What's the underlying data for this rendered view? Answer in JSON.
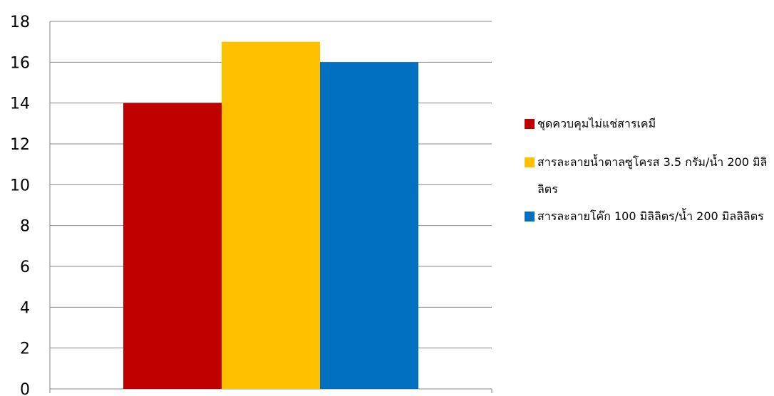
{
  "chart_data": {
    "type": "bar",
    "categories": [
      ""
    ],
    "series": [
      {
        "name": "ชุดควบคุมไม่แช่สารเคมี",
        "values": [
          14
        ],
        "color": "#C00000"
      },
      {
        "name": "สารละลายน้ำตาลซูโครส 3.5 กรัม/น้ำ 200 มิลิลิตร",
        "values": [
          17
        ],
        "color": "#FFC000"
      },
      {
        "name": "สารละลายโค๊ก 100 มิลิลิตร/น้ำ 200 มิลลิลิตร",
        "values": [
          16
        ],
        "color": "#0070C0"
      }
    ],
    "ylim": [
      0,
      18
    ],
    "yticks": [
      "0",
      "2",
      "4",
      "6",
      "8",
      "10",
      "12",
      "14",
      "16",
      "18"
    ],
    "grid": true,
    "legend_position": "right",
    "title": "",
    "xlabel": "",
    "ylabel": ""
  }
}
